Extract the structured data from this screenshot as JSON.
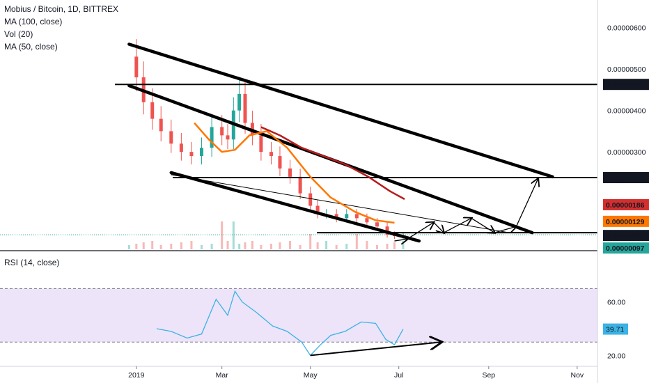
{
  "header": {
    "symbol": "Mobius / Bitcoin, 1D, BITTREX",
    "indicators": [
      "MA (100, close)",
      "Vol (20)",
      "MA (50, close)"
    ]
  },
  "rsi": {
    "label": "RSI (14, close)",
    "current": "39.71"
  },
  "colors": {
    "bull": "#26a69a",
    "bear": "#ef5350",
    "ma50": "#ff7700",
    "ma100": "#b71c1c",
    "rsi": "#3bb3e4",
    "rsi_band": "#e6d8f7",
    "trend": "#000000"
  },
  "chart_data": [
    {
      "type": "line",
      "title": "Mobius / Bitcoin, 1D, BITTREX",
      "x_ticks": [
        "2019",
        "Mar",
        "May",
        "Jul",
        "Sep",
        "Nov"
      ],
      "y_ticks": [
        "0.00000600",
        "0.00000500",
        "0.00000400",
        "0.00000300"
      ],
      "price_labels": [
        {
          "value": "0.00000463",
          "style": "dark"
        },
        {
          "value": "0.00000238",
          "style": "dark"
        },
        {
          "value": "0.00000186",
          "style": "ma100"
        },
        {
          "value": "0.00000129",
          "style": "ma50"
        },
        {
          "value": "0.00000105",
          "style": "dark"
        },
        {
          "value": "0.00000097",
          "style": "last"
        }
      ],
      "close_series": {
        "name": "Close",
        "dates": [
          "2018-12-27",
          "2019-01-01",
          "2019-01-06",
          "2019-01-12",
          "2019-01-18",
          "2019-01-25",
          "2019-02-01",
          "2019-02-08",
          "2019-02-15",
          "2019-02-22",
          "2019-03-01",
          "2019-03-05",
          "2019-03-09",
          "2019-03-13",
          "2019-03-17",
          "2019-03-22",
          "2019-03-28",
          "2019-04-04",
          "2019-04-10",
          "2019-04-17",
          "2019-04-24",
          "2019-05-01",
          "2019-05-06",
          "2019-05-12",
          "2019-05-19",
          "2019-05-26",
          "2019-06-02",
          "2019-06-09",
          "2019-06-16",
          "2019-06-23",
          "2019-06-28",
          "2019-07-04"
        ],
        "values": [
          5.3e-06,
          4.8e-06,
          4.2e-06,
          3.8e-06,
          3.5e-06,
          3.2e-06,
          3e-06,
          2.9e-06,
          3.1e-06,
          3.6e-06,
          3.4e-06,
          3.3e-06,
          4e-06,
          4.4e-06,
          3.7e-06,
          3.4e-06,
          3e-06,
          2.9e-06,
          2.6e-06,
          2.4e-06,
          2e-06,
          1.7e-06,
          1.5e-06,
          1.5e-06,
          1.4e-06,
          1.5e-06,
          1.4e-06,
          1.3e-06,
          1.2e-06,
          1e-06,
          9.7e-07,
          9.7e-07
        ]
      },
      "ma50": {
        "name": "MA (50, close)",
        "dates": [
          "2019-02-10",
          "2019-02-20",
          "2019-03-01",
          "2019-03-10",
          "2019-03-20",
          "2019-04-01",
          "2019-04-15",
          "2019-05-01",
          "2019-05-15",
          "2019-06-01",
          "2019-06-15",
          "2019-06-28"
        ],
        "values": [
          3.7e-06,
          3.3e-06,
          3e-06,
          3.05e-06,
          3.4e-06,
          3.5e-06,
          3.1e-06,
          2.4e-06,
          1.9e-06,
          1.55e-06,
          1.35e-06,
          1.29e-06
        ]
      },
      "ma100": {
        "name": "MA (100, close)",
        "dates": [
          "2019-03-28",
          "2019-04-10",
          "2019-04-25",
          "2019-05-10",
          "2019-05-25",
          "2019-06-10",
          "2019-06-25",
          "2019-07-05"
        ],
        "values": [
          3.6e-06,
          3.4e-06,
          3.1e-06,
          2.9e-06,
          2.7e-06,
          2.4e-06,
          2.05e-06,
          1.86e-06
        ]
      },
      "horizontal_levels": [
        4.63e-06,
        2.38e-06,
        1.05e-06
      ],
      "trendlines": [
        {
          "from": [
            "2018-12-27",
            5.6e-06
          ],
          "to": [
            "2019-10-15",
            2.4e-06
          ]
        },
        {
          "from": [
            "2018-12-27",
            4.6e-06
          ],
          "to": [
            "2019-10-01",
            1.05e-06
          ]
        },
        {
          "from": [
            "2019-01-25",
            2.5e-06
          ],
          "to": [
            "2019-07-15",
            8.5e-07
          ]
        },
        {
          "from": [
            "2019-01-25",
            2.45e-06
          ],
          "to": [
            "2019-09-15",
            1.05e-06
          ]
        }
      ],
      "projection_path": {
        "dates": [
          "2019-06-28",
          "2019-07-07",
          "2019-07-25",
          "2019-08-01",
          "2019-08-20",
          "2019-09-05",
          "2019-09-20",
          "2019-10-05"
        ],
        "values": [
          8.5e-07,
          9e-07,
          1.3e-06,
          1.05e-06,
          1.4e-06,
          1.05e-06,
          1.2e-06,
          2.35e-06
        ]
      }
    },
    {
      "type": "line",
      "title": "RSI (14, close)",
      "y_ticks": [
        "60.00",
        "20.00"
      ],
      "band": [
        30,
        70
      ],
      "series": [
        {
          "name": "RSI (14, close)",
          "dates": [
            "2019-01-15",
            "2019-01-25",
            "2019-02-05",
            "2019-02-15",
            "2019-02-25",
            "2019-03-05",
            "2019-03-10",
            "2019-03-15",
            "2019-03-25",
            "2019-04-05",
            "2019-04-15",
            "2019-04-25",
            "2019-05-01",
            "2019-05-08",
            "2019-05-15",
            "2019-05-25",
            "2019-06-05",
            "2019-06-15",
            "2019-06-22",
            "2019-06-28",
            "2019-07-04"
          ],
          "values": [
            40,
            38,
            33,
            36,
            62,
            50,
            68,
            60,
            52,
            42,
            38,
            30,
            20,
            28,
            35,
            38,
            45,
            44,
            32,
            28,
            39.71
          ]
        }
      ],
      "divergence_line": {
        "from": [
          "2019-05-01",
          20
        ],
        "to": [
          "2019-07-30",
          30
        ]
      }
    }
  ]
}
